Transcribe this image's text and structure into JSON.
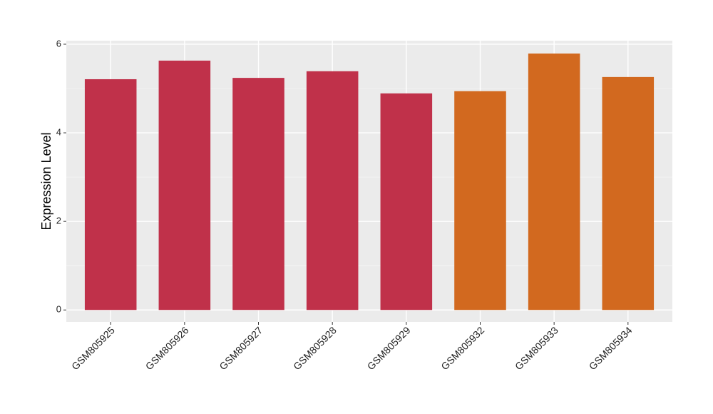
{
  "chart_data": {
    "type": "bar",
    "y_label": "Expression Level",
    "categories": [
      "GSM805925",
      "GSM805926",
      "GSM805927",
      "GSM805928",
      "GSM805929",
      "GSM805932",
      "GSM805933",
      "GSM805934"
    ],
    "values": [
      5.21,
      5.63,
      5.24,
      5.39,
      4.89,
      4.94,
      5.79,
      5.26
    ],
    "colors": [
      "#c0314a",
      "#c0314a",
      "#c0314a",
      "#c0314a",
      "#c0314a",
      "#d2691f",
      "#d2691f",
      "#d2691f"
    ],
    "ylim": [
      -0.27,
      6.08
    ],
    "yticks": [
      0,
      2,
      4,
      6
    ],
    "minor_yticks": [
      1,
      3,
      5
    ],
    "grid": true
  }
}
